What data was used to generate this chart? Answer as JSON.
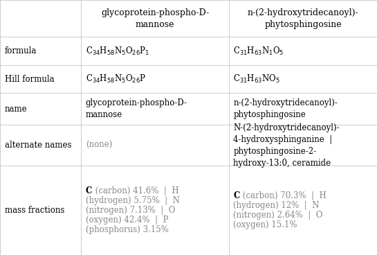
{
  "col_headers": [
    "",
    "glycoprotein-phospho-D-\nmannose",
    "n-(2-hydroxytridecanoyl)-\nphytosphingosine"
  ],
  "row_labels": [
    "formula",
    "Hill formula",
    "name",
    "alternate names",
    "mass fractions"
  ],
  "col1_formula": "C$_{34}$H$_{58}$N$_{5}$O$_{26}$P$_{1}$",
  "col2_formula": "C$_{31}$H$_{63}$N$_{1}$O$_{5}$",
  "col1_hill": "C$_{34}$H$_{58}$N$_{5}$O$_{26}$P",
  "col2_hill": "C$_{31}$H$_{63}$NO$_{5}$",
  "col1_name": "glycoprotein-phospho-D-\nmannose",
  "col2_name": "n-(2-hydroxytridecanoyl)-\nphytosphingosine",
  "col1_altnames": "(none)",
  "col2_altnames": "N-(2-hydroxytridecanoyl)-\n4-hydroxysphinganine  |\nphytosphingosine-2-\nhydroxy-13:0, ceramide",
  "col1_mf_lines": [
    [
      "C",
      " (carbon) 41.6%  |  H"
    ],
    [
      "",
      "(hydrogen) 5.75%  |  N"
    ],
    [
      "",
      "(nitrogen) 7.13%  |  O"
    ],
    [
      "",
      "(oxygen) 42.4%  |  P"
    ],
    [
      "",
      "(phosphorus) 3.15%"
    ]
  ],
  "col2_mf_lines": [
    [
      "C",
      " (carbon) 70.3%  |  H"
    ],
    [
      "",
      "(hydrogen) 12%  |  N"
    ],
    [
      "",
      "(nitrogen) 2.64%  |  O"
    ],
    [
      "",
      "(oxygen) 15.1%"
    ]
  ],
  "bg": "#ffffff",
  "grid_color": "#cccccc",
  "text_color": "#000000",
  "gray_color": "#888888",
  "col_bounds": [
    0.0,
    0.215,
    0.607,
    1.0
  ],
  "row_tops": [
    1.0,
    0.855,
    0.745,
    0.635,
    0.51,
    0.35,
    0.0
  ],
  "font_size": 8.5,
  "header_font_size": 9.0,
  "font_family": "DejaVu Serif"
}
